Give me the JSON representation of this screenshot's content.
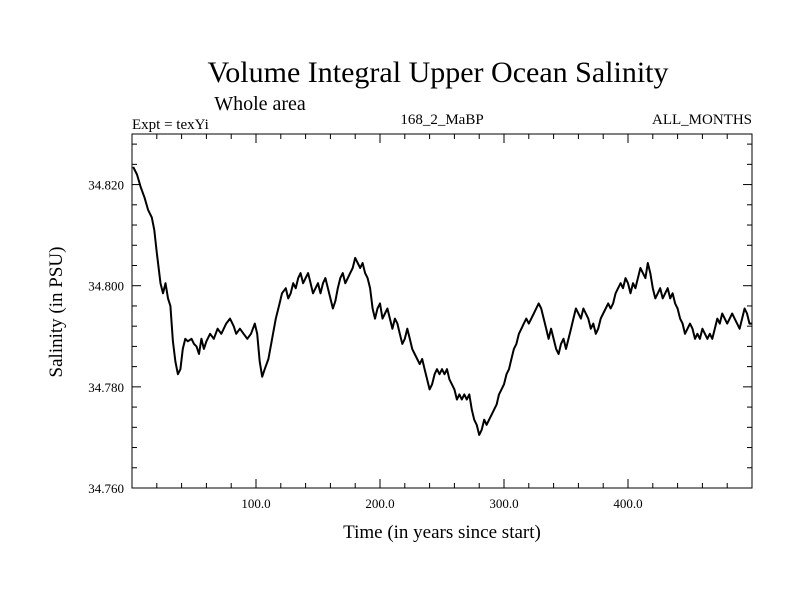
{
  "chart_data": {
    "type": "line",
    "title": "Volume Integral Upper Ocean Salinity",
    "subtitle": "Whole area",
    "left_label": "Expt = texYi",
    "center_label": "168_2_MaBP",
    "right_label": "ALL_MONTHS",
    "xlabel": "Time (in years since start)",
    "ylabel": "Salinity (in PSU)",
    "xlim": [
      0,
      500
    ],
    "ylim": [
      34.76,
      34.83
    ],
    "x_ticks": [
      100,
      200,
      300,
      400
    ],
    "x_tick_labels": [
      "100.0",
      "200.0",
      "300.0",
      "400.0"
    ],
    "y_ticks": [
      34.76,
      34.78,
      34.8,
      34.82
    ],
    "y_tick_labels": [
      "34.760",
      "34.780",
      "34.800",
      "34.820"
    ],
    "grid": false,
    "series": [
      {
        "points": [
          [
            1,
            34.8235
          ],
          [
            4,
            34.822
          ],
          [
            7,
            34.8195
          ],
          [
            10,
            34.8175
          ],
          [
            13,
            34.815
          ],
          [
            16,
            34.8135
          ],
          [
            18,
            34.811
          ],
          [
            20,
            34.8065
          ],
          [
            23,
            34.8005
          ],
          [
            25,
            34.7985
          ],
          [
            27,
            34.8005
          ],
          [
            29,
            34.7975
          ],
          [
            31,
            34.796
          ],
          [
            33,
            34.789
          ],
          [
            35,
            34.785
          ],
          [
            37,
            34.7825
          ],
          [
            39,
            34.7835
          ],
          [
            41,
            34.7875
          ],
          [
            43,
            34.7895
          ],
          [
            45,
            34.789
          ],
          [
            48,
            34.7895
          ],
          [
            50,
            34.7885
          ],
          [
            52,
            34.788
          ],
          [
            54,
            34.7865
          ],
          [
            56,
            34.7895
          ],
          [
            58,
            34.7875
          ],
          [
            60,
            34.789
          ],
          [
            63,
            34.7905
          ],
          [
            66,
            34.7895
          ],
          [
            69,
            34.7915
          ],
          [
            72,
            34.7905
          ],
          [
            76,
            34.7925
          ],
          [
            79,
            34.7935
          ],
          [
            82,
            34.792
          ],
          [
            84,
            34.7905
          ],
          [
            87,
            34.7915
          ],
          [
            90,
            34.7905
          ],
          [
            93,
            34.7895
          ],
          [
            96,
            34.7905
          ],
          [
            99,
            34.7925
          ],
          [
            101,
            34.7905
          ],
          [
            103,
            34.785
          ],
          [
            105,
            34.782
          ],
          [
            107,
            34.7835
          ],
          [
            110,
            34.7855
          ],
          [
            113,
            34.7895
          ],
          [
            116,
            34.7935
          ],
          [
            119,
            34.7965
          ],
          [
            121,
            34.7985
          ],
          [
            124,
            34.7995
          ],
          [
            126,
            34.7975
          ],
          [
            128,
            34.7985
          ],
          [
            130,
            34.8005
          ],
          [
            132,
            34.7995
          ],
          [
            134,
            34.8015
          ],
          [
            136,
            34.8025
          ],
          [
            138,
            34.8005
          ],
          [
            140,
            34.8015
          ],
          [
            142,
            34.8025
          ],
          [
            144,
            34.8005
          ],
          [
            146,
            34.7985
          ],
          [
            148,
            34.7995
          ],
          [
            150,
            34.8005
          ],
          [
            152,
            34.7985
          ],
          [
            154,
            34.8005
          ],
          [
            156,
            34.8015
          ],
          [
            158,
            34.7995
          ],
          [
            160,
            34.7975
          ],
          [
            162,
            34.7955
          ],
          [
            164,
            34.797
          ],
          [
            166,
            34.7995
          ],
          [
            168,
            34.8015
          ],
          [
            170,
            34.8025
          ],
          [
            172,
            34.8005
          ],
          [
            174,
            34.8015
          ],
          [
            176,
            34.8025
          ],
          [
            178,
            34.8035
          ],
          [
            180,
            34.8055
          ],
          [
            182,
            34.8045
          ],
          [
            184,
            34.8035
          ],
          [
            186,
            34.8045
          ],
          [
            188,
            34.8025
          ],
          [
            190,
            34.8015
          ],
          [
            192,
            34.7995
          ],
          [
            194,
            34.7955
          ],
          [
            196,
            34.7935
          ],
          [
            198,
            34.7955
          ],
          [
            200,
            34.7965
          ],
          [
            202,
            34.7935
          ],
          [
            204,
            34.7945
          ],
          [
            206,
            34.7955
          ],
          [
            208,
            34.7935
          ],
          [
            210,
            34.7915
          ],
          [
            212,
            34.7935
          ],
          [
            214,
            34.7925
          ],
          [
            216,
            34.7905
          ],
          [
            218,
            34.7885
          ],
          [
            220,
            34.7895
          ],
          [
            222,
            34.7915
          ],
          [
            224,
            34.7895
          ],
          [
            226,
            34.7875
          ],
          [
            228,
            34.7865
          ],
          [
            230,
            34.7855
          ],
          [
            232,
            34.7845
          ],
          [
            234,
            34.7855
          ],
          [
            236,
            34.7835
          ],
          [
            238,
            34.7815
          ],
          [
            240,
            34.7795
          ],
          [
            242,
            34.7805
          ],
          [
            244,
            34.7825
          ],
          [
            246,
            34.7835
          ],
          [
            248,
            34.7825
          ],
          [
            250,
            34.7835
          ],
          [
            252,
            34.7825
          ],
          [
            254,
            34.7835
          ],
          [
            256,
            34.7815
          ],
          [
            258,
            34.7805
          ],
          [
            260,
            34.7795
          ],
          [
            262,
            34.7775
          ],
          [
            264,
            34.7785
          ],
          [
            266,
            34.7775
          ],
          [
            268,
            34.7785
          ],
          [
            270,
            34.7775
          ],
          [
            272,
            34.7785
          ],
          [
            274,
            34.7755
          ],
          [
            276,
            34.7735
          ],
          [
            278,
            34.7725
          ],
          [
            280,
            34.7705
          ],
          [
            282,
            34.7715
          ],
          [
            284,
            34.7735
          ],
          [
            286,
            34.7725
          ],
          [
            288,
            34.7735
          ],
          [
            290,
            34.7745
          ],
          [
            292,
            34.7755
          ],
          [
            294,
            34.7765
          ],
          [
            296,
            34.7785
          ],
          [
            298,
            34.7795
          ],
          [
            300,
            34.7805
          ],
          [
            302,
            34.7825
          ],
          [
            304,
            34.7835
          ],
          [
            306,
            34.7855
          ],
          [
            308,
            34.7875
          ],
          [
            310,
            34.7885
          ],
          [
            312,
            34.7905
          ],
          [
            314,
            34.7915
          ],
          [
            316,
            34.7925
          ],
          [
            318,
            34.7935
          ],
          [
            320,
            34.7925
          ],
          [
            322,
            34.7935
          ],
          [
            324,
            34.7945
          ],
          [
            326,
            34.7955
          ],
          [
            328,
            34.7965
          ],
          [
            330,
            34.7955
          ],
          [
            332,
            34.7935
          ],
          [
            334,
            34.7915
          ],
          [
            336,
            34.7895
          ],
          [
            338,
            34.7915
          ],
          [
            340,
            34.7895
          ],
          [
            342,
            34.7875
          ],
          [
            344,
            34.7865
          ],
          [
            346,
            34.7885
          ],
          [
            348,
            34.7895
          ],
          [
            350,
            34.7875
          ],
          [
            352,
            34.7895
          ],
          [
            354,
            34.7915
          ],
          [
            356,
            34.7935
          ],
          [
            358,
            34.7955
          ],
          [
            360,
            34.7945
          ],
          [
            362,
            34.7935
          ],
          [
            364,
            34.7955
          ],
          [
            366,
            34.7945
          ],
          [
            368,
            34.7935
          ],
          [
            370,
            34.7915
          ],
          [
            372,
            34.7925
          ],
          [
            374,
            34.7905
          ],
          [
            376,
            34.7915
          ],
          [
            378,
            34.7935
          ],
          [
            380,
            34.7945
          ],
          [
            382,
            34.7955
          ],
          [
            384,
            34.7965
          ],
          [
            386,
            34.7955
          ],
          [
            388,
            34.7965
          ],
          [
            390,
            34.7985
          ],
          [
            392,
            34.7995
          ],
          [
            394,
            34.8005
          ],
          [
            396,
            34.7995
          ],
          [
            398,
            34.8015
          ],
          [
            400,
            34.8005
          ],
          [
            402,
            34.7985
          ],
          [
            404,
            34.8005
          ],
          [
            406,
            34.7995
          ],
          [
            408,
            34.8015
          ],
          [
            410,
            34.8035
          ],
          [
            412,
            34.8025
          ],
          [
            414,
            34.8015
          ],
          [
            416,
            34.8045
          ],
          [
            418,
            34.8025
          ],
          [
            420,
            34.7995
          ],
          [
            422,
            34.7975
          ],
          [
            424,
            34.7985
          ],
          [
            426,
            34.7995
          ],
          [
            428,
            34.7975
          ],
          [
            430,
            34.7985
          ],
          [
            432,
            34.7995
          ],
          [
            434,
            34.7975
          ],
          [
            436,
            34.7985
          ],
          [
            438,
            34.7965
          ],
          [
            440,
            34.7955
          ],
          [
            442,
            34.7935
          ],
          [
            444,
            34.7925
          ],
          [
            446,
            34.7905
          ],
          [
            448,
            34.7915
          ],
          [
            450,
            34.7925
          ],
          [
            452,
            34.7915
          ],
          [
            454,
            34.7895
          ],
          [
            456,
            34.7905
          ],
          [
            458,
            34.7895
          ],
          [
            460,
            34.7915
          ],
          [
            462,
            34.7905
          ],
          [
            464,
            34.7895
          ],
          [
            466,
            34.7905
          ],
          [
            468,
            34.7895
          ],
          [
            470,
            34.7915
          ],
          [
            472,
            34.7935
          ],
          [
            474,
            34.7925
          ],
          [
            476,
            34.7945
          ],
          [
            478,
            34.7935
          ],
          [
            480,
            34.7925
          ],
          [
            482,
            34.7935
          ],
          [
            484,
            34.7945
          ],
          [
            486,
            34.7935
          ],
          [
            488,
            34.7925
          ],
          [
            490,
            34.7915
          ],
          [
            492,
            34.7935
          ],
          [
            494,
            34.7955
          ],
          [
            496,
            34.7945
          ],
          [
            498,
            34.7925
          ],
          [
            500,
            34.7925
          ]
        ]
      }
    ]
  }
}
